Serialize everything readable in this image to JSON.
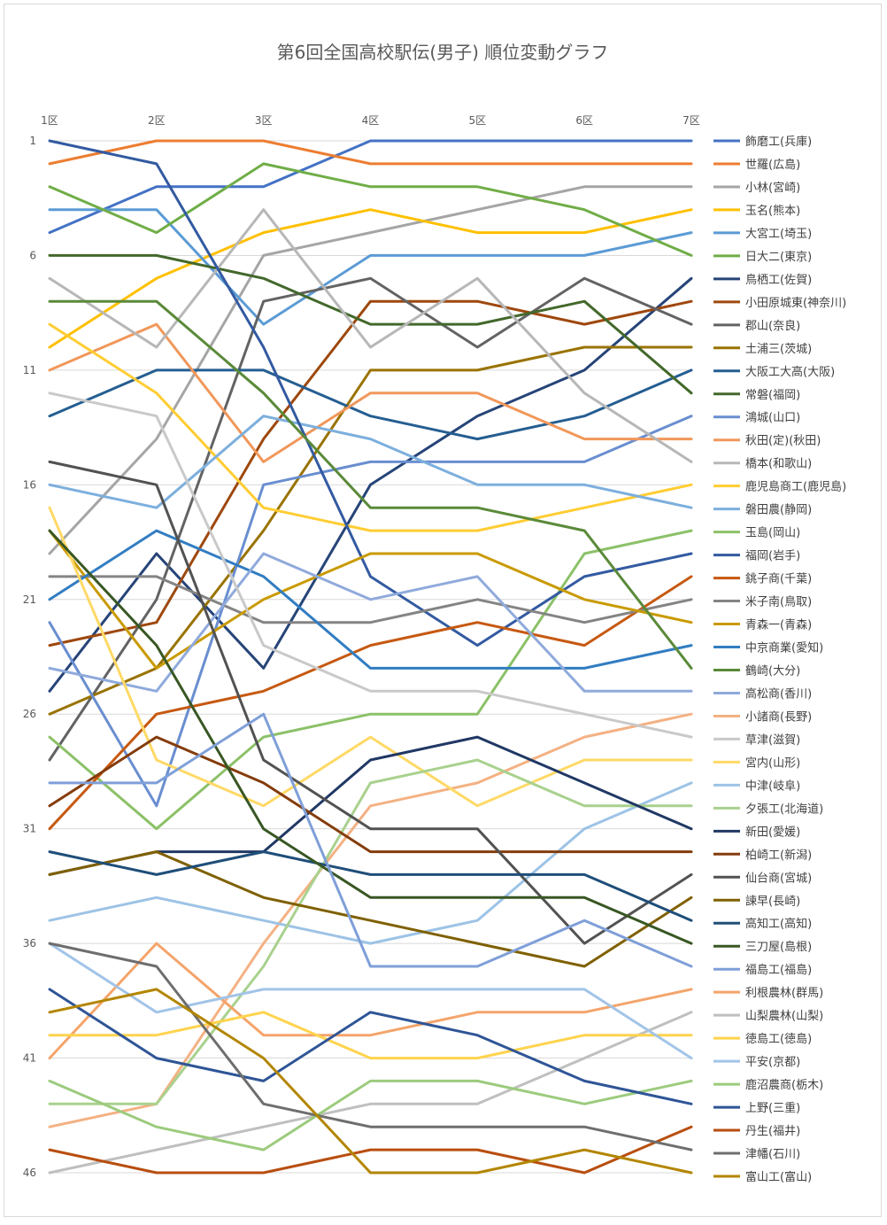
{
  "chart_data": {
    "type": "line",
    "title": "第6回全国高校駅伝(男子) 順位変動グラフ",
    "categories": [
      "1区",
      "2区",
      "3区",
      "4区",
      "5区",
      "6区",
      "7区"
    ],
    "y_ticks": [
      1,
      6,
      11,
      16,
      21,
      26,
      31,
      36,
      41,
      46
    ],
    "ylim": [
      1,
      46
    ],
    "y_reversed": true,
    "grid": true,
    "legend_position": "right",
    "series": [
      {
        "name": "飾磨工(兵庫)",
        "color": "#4472C4",
        "values": [
          5,
          3,
          3,
          1,
          1,
          1,
          1
        ]
      },
      {
        "name": "世羅(広島)",
        "color": "#ED7D31",
        "values": [
          2,
          1,
          1,
          2,
          2,
          2,
          2
        ]
      },
      {
        "name": "小林(宮崎)",
        "color": "#A5A5A5",
        "values": [
          19,
          14,
          6,
          5,
          4,
          3,
          3
        ]
      },
      {
        "name": "玉名(熊本)",
        "color": "#FFC000",
        "values": [
          10,
          7,
          5,
          4,
          5,
          5,
          4
        ]
      },
      {
        "name": "大宮工(埼玉)",
        "color": "#5B9BD5",
        "values": [
          4,
          4,
          9,
          6,
          6,
          6,
          5
        ]
      },
      {
        "name": "日大二(東京)",
        "color": "#70AD47",
        "values": [
          3,
          5,
          2,
          3,
          3,
          4,
          6
        ]
      },
      {
        "name": "鳥栖工(佐賀)",
        "color": "#264478",
        "values": [
          25,
          19,
          24,
          16,
          13,
          11,
          7
        ]
      },
      {
        "name": "小田原城東(神奈川)",
        "color": "#9E480E",
        "values": [
          23,
          22,
          14,
          8,
          8,
          9,
          8
        ]
      },
      {
        "name": "郡山(奈良)",
        "color": "#636363",
        "values": [
          28,
          21,
          8,
          7,
          10,
          7,
          9
        ]
      },
      {
        "name": "土浦三(茨城)",
        "color": "#997300",
        "values": [
          26,
          24,
          18,
          11,
          11,
          10,
          10
        ]
      },
      {
        "name": "大阪工大高(大阪)",
        "color": "#255E91",
        "values": [
          13,
          11,
          11,
          13,
          14,
          13,
          11
        ]
      },
      {
        "name": "常磐(福岡)",
        "color": "#43682B",
        "values": [
          6,
          6,
          7,
          9,
          9,
          8,
          12
        ]
      },
      {
        "name": "鴻城(山口)",
        "color": "#698ED0",
        "values": [
          22,
          30,
          16,
          15,
          15,
          15,
          13
        ]
      },
      {
        "name": "秋田(定)(秋田)",
        "color": "#F1975A",
        "values": [
          11,
          9,
          15,
          12,
          12,
          14,
          14
        ]
      },
      {
        "name": "橋本(和歌山)",
        "color": "#B7B7B7",
        "values": [
          7,
          10,
          4,
          10,
          7,
          12,
          15
        ]
      },
      {
        "name": "鹿児島商工(鹿児島)",
        "color": "#FFCD33",
        "values": [
          9,
          12,
          17,
          18,
          18,
          17,
          16
        ]
      },
      {
        "name": "磐田農(静岡)",
        "color": "#7CAFDD",
        "values": [
          16,
          17,
          13,
          14,
          16,
          16,
          17
        ]
      },
      {
        "name": "玉島(岡山)",
        "color": "#8CC168",
        "values": [
          27,
          31,
          27,
          26,
          26,
          19,
          18
        ]
      },
      {
        "name": "福岡(岩手)",
        "color": "#335AA1",
        "values": [
          1,
          2,
          10,
          20,
          23,
          20,
          19
        ]
      },
      {
        "name": "銚子商(千葉)",
        "color": "#C65911",
        "values": [
          31,
          26,
          25,
          23,
          22,
          23,
          20
        ]
      },
      {
        "name": "米子南(鳥取)",
        "color": "#848484",
        "values": [
          20,
          20,
          22,
          22,
          21,
          22,
          21
        ]
      },
      {
        "name": "青森一(青森)",
        "color": "#C99A00",
        "values": [
          18,
          24,
          21,
          19,
          19,
          21,
          22
        ]
      },
      {
        "name": "中京商業(愛知)",
        "color": "#327DC2",
        "values": [
          21,
          18,
          20,
          24,
          24,
          24,
          23
        ]
      },
      {
        "name": "鶴崎(大分)",
        "color": "#5A8A39",
        "values": [
          8,
          8,
          12,
          17,
          17,
          18,
          24
        ]
      },
      {
        "name": "高松商(香川)",
        "color": "#8FAADC",
        "values": [
          24,
          25,
          19,
          21,
          20,
          25,
          25
        ]
      },
      {
        "name": "小諸商(長野)",
        "color": "#F4B183",
        "values": [
          44,
          43,
          36,
          30,
          29,
          27,
          26
        ]
      },
      {
        "name": "草津(滋賀)",
        "color": "#C9C9C9",
        "values": [
          12,
          13,
          23,
          25,
          25,
          26,
          27
        ]
      },
      {
        "name": "宮内(山形)",
        "color": "#FFD966",
        "values": [
          17,
          28,
          30,
          27,
          30,
          28,
          28
        ]
      },
      {
        "name": "中津(岐阜)",
        "color": "#9DC3E6",
        "values": [
          35,
          34,
          35,
          36,
          35,
          31,
          29
        ]
      },
      {
        "name": "夕張工(北海道)",
        "color": "#A9D18E",
        "values": [
          43,
          43,
          37,
          29,
          28,
          30,
          30
        ]
      },
      {
        "name": "新田(愛媛)",
        "color": "#203864",
        "values": [
          33,
          32,
          32,
          28,
          27,
          29,
          31
        ]
      },
      {
        "name": "柏崎工(新潟)",
        "color": "#843C0C",
        "values": [
          30,
          27,
          29,
          32,
          32,
          32,
          32
        ]
      },
      {
        "name": "仙台商(宮城)",
        "color": "#525252",
        "values": [
          15,
          16,
          28,
          31,
          31,
          36,
          33
        ]
      },
      {
        "name": "諫早(長崎)",
        "color": "#7F6000",
        "values": [
          33,
          32,
          34,
          35,
          36,
          37,
          34
        ]
      },
      {
        "name": "高知工(高知)",
        "color": "#1F4E79",
        "values": [
          32,
          33,
          32,
          33,
          33,
          33,
          35
        ]
      },
      {
        "name": "三刀屋(島根)",
        "color": "#385723",
        "values": [
          18,
          23,
          31,
          34,
          34,
          34,
          36
        ]
      },
      {
        "name": "福島工(福島)",
        "color": "#7F9FD8",
        "values": [
          29,
          29,
          26,
          37,
          37,
          35,
          37
        ]
      },
      {
        "name": "利根農林(群馬)",
        "color": "#F4A46B",
        "values": [
          41,
          36,
          40,
          40,
          39,
          39,
          38
        ]
      },
      {
        "name": "山梨農林(山梨)",
        "color": "#BFBFBF",
        "values": [
          46,
          45,
          44,
          43,
          43,
          41,
          39
        ]
      },
      {
        "name": "徳島工(徳島)",
        "color": "#FFD34D",
        "values": [
          40,
          40,
          39,
          41,
          41,
          40,
          40
        ]
      },
      {
        "name": "平安(京都)",
        "color": "#A2C4E8",
        "values": [
          36,
          39,
          38,
          38,
          38,
          38,
          41
        ]
      },
      {
        "name": "鹿沼農商(栃木)",
        "color": "#9CCB7D",
        "values": [
          42,
          44,
          45,
          42,
          42,
          43,
          42
        ]
      },
      {
        "name": "上野(三重)",
        "color": "#2F5597",
        "values": [
          38,
          41,
          42,
          39,
          40,
          42,
          43
        ]
      },
      {
        "name": "丹生(福井)",
        "color": "#B84E0F",
        "values": [
          45,
          46,
          46,
          45,
          45,
          46,
          44
        ]
      },
      {
        "name": "津幡(石川)",
        "color": "#6E6E6E",
        "values": [
          36,
          37,
          43,
          44,
          44,
          44,
          45
        ]
      },
      {
        "name": "富山工(富山)",
        "color": "#B38600",
        "values": [
          39,
          38,
          41,
          46,
          46,
          45,
          46
        ]
      }
    ]
  }
}
